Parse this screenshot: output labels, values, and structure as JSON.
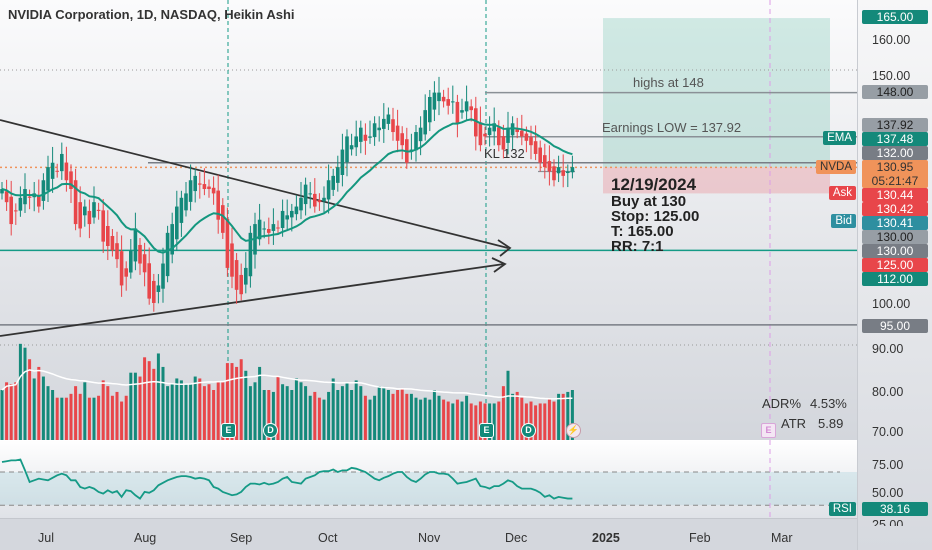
{
  "header": {
    "title": "NVIDIA Corporation, 1D, NASDAQ, Heikin Ashi"
  },
  "annotations": {
    "highs": "highs at 148",
    "earnings_low": "Earnings LOW = 137.92",
    "kl": "KL 132"
  },
  "trade": {
    "date": "12/19/2024",
    "buy": "Buy at 130",
    "stop": "Stop: 125.00",
    "target": "T: 165.00",
    "rr": "RR: 7:1"
  },
  "price_labels": {
    "p165": "165.00",
    "p160": "160.00",
    "p150": "150.00",
    "p148": "148.00",
    "p13792": "137.92",
    "ema_tag": "EMA",
    "ema": "137.48",
    "p132": "132.00",
    "nvda_tag": "NVDA",
    "last": "130.95",
    "countdown": "05:21:47",
    "ask_tag": "Ask",
    "ask": "130.44",
    "p13042": "130.42",
    "bid_tag": "Bid",
    "bid": "130.41",
    "p130a": "130.00",
    "p130b": "130.00",
    "p125": "125.00",
    "p112": "112.00",
    "p100": "100.00",
    "p95": "95.00",
    "p90": "90.00",
    "p80": "80.00",
    "p70": "70.00"
  },
  "rsi_labels": {
    "p75": "75.00",
    "p50": "50.00",
    "tag": "RSI",
    "value": "38.16",
    "p25": "25.00"
  },
  "stats": {
    "adr_label": "ADR%",
    "adr": "4.53%",
    "atr_label": "ATR",
    "atr": "5.89"
  },
  "markers": {
    "earnings": "E",
    "dividend": "D"
  },
  "time_labels": [
    "Jul",
    "Aug",
    "Sep",
    "Oct",
    "Nov",
    "Dec",
    "2025",
    "Feb",
    "Mar"
  ],
  "colors": {
    "up": "#14897a",
    "down": "#e8464a",
    "ema": "#14977f",
    "last": "#f0935a",
    "teal": "#159a86"
  },
  "chart_data": {
    "type": "candlestick",
    "title": "NVIDIA Corporation, 1D, NASDAQ, Heikin Ashi",
    "ylim": [
      70,
      170
    ],
    "yticks": [
      70,
      80,
      90,
      100,
      150,
      160
    ],
    "closes": [
      126,
      123,
      118,
      121,
      124,
      126,
      124,
      125,
      122,
      128,
      131,
      132,
      130,
      134,
      128,
      126,
      118,
      117,
      122,
      118,
      123,
      121,
      114,
      113,
      112,
      110,
      104,
      106,
      112,
      117,
      109,
      107,
      101,
      100,
      104,
      109,
      116,
      118,
      122,
      124,
      125,
      128,
      129,
      127,
      126,
      126,
      125,
      119,
      116,
      108,
      106,
      103,
      102,
      108,
      116,
      118,
      119,
      117,
      116,
      118,
      117,
      121,
      120,
      121,
      122,
      124,
      127,
      125,
      122,
      123,
      124,
      128,
      129,
      131,
      135,
      138,
      136,
      138,
      140,
      137,
      138,
      141,
      140,
      142,
      143,
      139,
      137,
      136,
      132,
      135,
      139,
      140,
      144,
      147,
      148,
      148,
      146,
      145,
      146,
      141,
      144,
      146,
      144,
      138,
      136,
      138,
      140,
      141,
      136,
      135,
      140,
      141,
      139,
      138,
      137,
      136,
      134,
      132,
      131,
      130,
      128,
      131,
      129,
      130,
      131
    ],
    "volume_m": [
      260,
      300,
      290,
      300,
      500,
      480,
      420,
      320,
      380,
      330,
      280,
      260,
      220,
      220,
      220,
      240,
      280,
      240,
      300,
      220,
      220,
      230,
      310,
      280,
      230,
      250,
      200,
      230,
      350,
      350,
      330,
      430,
      410,
      370,
      450,
      380,
      280,
      290,
      320,
      310,
      290,
      290,
      330,
      320,
      280,
      290,
      260,
      300,
      300,
      400,
      400,
      380,
      420,
      360,
      280,
      300,
      380,
      260,
      260,
      250,
      330,
      290,
      280,
      260,
      320,
      300,
      280,
      230,
      250,
      220,
      210,
      250,
      320,
      260,
      280,
      300,
      260,
      310,
      280,
      230,
      210,
      230,
      280,
      270,
      260,
      240,
      260,
      270,
      240,
      240,
      220,
      210,
      220,
      210,
      260,
      230,
      210,
      200,
      190,
      210,
      200,
      230,
      190,
      180,
      200,
      190,
      190,
      190,
      200,
      280,
      360,
      240,
      250,
      220,
      190,
      200,
      180,
      190,
      190,
      210,
      200,
      240,
      240,
      250,
      260
    ],
    "rsi": [
      82,
      83,
      84,
      84,
      85,
      72,
      58,
      60,
      62,
      61,
      60,
      63,
      66,
      68,
      66,
      60,
      60,
      52,
      50,
      52,
      50,
      46,
      44,
      48,
      45,
      47,
      40,
      48,
      47,
      42,
      38,
      46,
      45,
      48,
      54,
      57,
      60,
      62,
      64,
      65,
      65,
      64,
      62,
      63,
      62,
      60,
      52,
      50,
      46,
      44,
      42,
      43,
      46,
      52,
      56,
      56,
      55,
      57,
      55,
      56,
      58,
      62,
      64,
      58,
      57,
      56,
      62,
      64,
      66,
      70,
      71,
      71,
      73,
      70,
      72,
      72,
      75,
      74,
      72,
      70,
      66,
      62,
      60,
      63,
      65,
      68,
      70,
      70,
      64,
      60,
      58,
      62,
      67,
      70,
      70,
      68,
      68,
      67,
      62,
      56,
      57,
      58,
      60,
      62,
      53,
      52,
      50,
      53,
      53,
      56,
      60,
      58,
      53,
      50,
      50,
      50,
      48,
      45,
      40,
      42,
      38,
      40,
      39,
      38,
      38
    ],
    "horizontal_levels": [
      165,
      148,
      137.92,
      132,
      130.95,
      130,
      125,
      112,
      95
    ],
    "ema_last": 137.48,
    "rsi_last": 38.16
  }
}
